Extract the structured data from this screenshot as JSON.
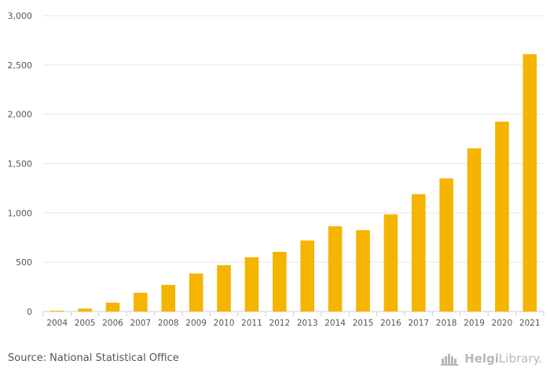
{
  "chart_data": {
    "type": "bar",
    "title": "",
    "xlabel": "",
    "ylabel": "",
    "ylim": [
      0,
      3000
    ],
    "yticks": [
      0,
      500,
      1000,
      1500,
      2000,
      2500,
      3000
    ],
    "ytick_labels": [
      "0",
      "500",
      "1,000",
      "1,500",
      "2,000",
      "2,500",
      "3,000"
    ],
    "categories": [
      "2004",
      "2005",
      "2006",
      "2007",
      "2008",
      "2009",
      "2010",
      "2011",
      "2012",
      "2013",
      "2014",
      "2015",
      "2016",
      "2017",
      "2018",
      "2019",
      "2020",
      "2021"
    ],
    "values": [
      8,
      30,
      90,
      190,
      270,
      385,
      470,
      550,
      605,
      720,
      865,
      825,
      985,
      1190,
      1350,
      1655,
      1925,
      2610
    ],
    "bar_color": "#f5b400",
    "grid": true
  },
  "footer": {
    "source": "Source: National Statistical Office",
    "logo_bold": "Helgi",
    "logo_text": "Library."
  },
  "colors": {
    "grid": "#e6e6e6",
    "axis_text": "#555555",
    "logo": "#b8b8b8"
  }
}
